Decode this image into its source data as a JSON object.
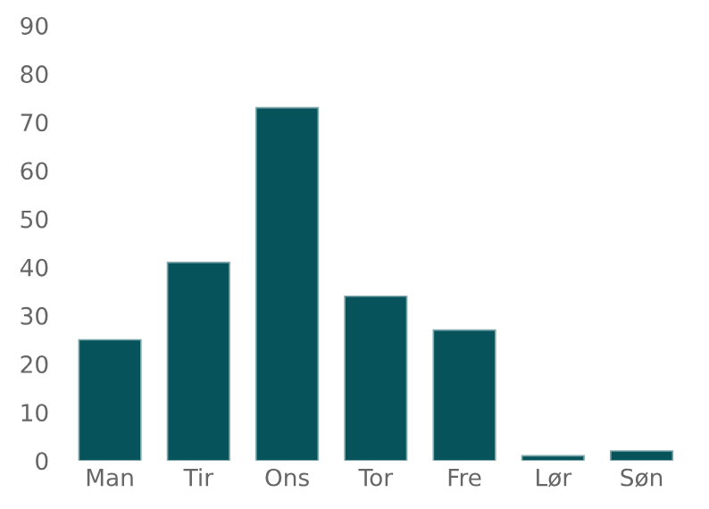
{
  "chart_data": {
    "type": "bar",
    "categories": [
      "Man",
      "Tir",
      "Ons",
      "Tor",
      "Fre",
      "Lør",
      "Søn"
    ],
    "values": [
      25,
      41,
      73,
      34,
      27,
      1,
      2
    ],
    "color": "#06535c",
    "ylim": [
      0,
      90
    ],
    "yticks": [
      0,
      10,
      20,
      30,
      40,
      50,
      60,
      70,
      80,
      90
    ],
    "grid": false
  }
}
